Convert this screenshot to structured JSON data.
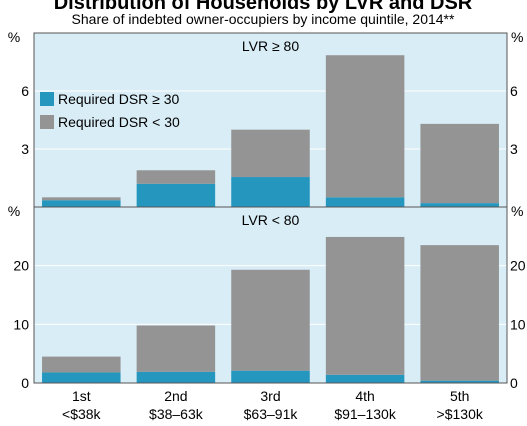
{
  "title": "Distribution of Households by LVR and DSR",
  "subtitle": "Share of indebted owner-occupiers by income quintile, 2014**",
  "chart_data": [
    {
      "type": "bar",
      "stacked": true,
      "panel_label": "LVR ≥ 80",
      "ylabel": "%",
      "ylim": [
        0,
        9
      ],
      "yticks": [
        3,
        6
      ],
      "grid": true,
      "legend": "upper left",
      "series": [
        {
          "name": "Required DSR ≥ 30",
          "color": "#2596be",
          "values": [
            0.35,
            1.2,
            1.55,
            0.5,
            0.2
          ]
        },
        {
          "name": "Required DSR < 30",
          "color": "#949494",
          "values": [
            0.15,
            0.7,
            2.45,
            7.35,
            4.1
          ]
        }
      ]
    },
    {
      "type": "bar",
      "stacked": true,
      "panel_label": "LVR < 80",
      "ylabel": "%",
      "ylim": [
        0,
        30
      ],
      "yticks": [
        0,
        10,
        20
      ],
      "grid": true,
      "categories": [
        "1st",
        "2nd",
        "3rd",
        "4th",
        "5th"
      ],
      "income_ranges": [
        "<$38k",
        "$38–63k",
        "$63–91k",
        "$91–130k",
        ">$130k"
      ],
      "series": [
        {
          "name": "Required DSR ≥ 30",
          "color": "#2596be",
          "values": [
            1.8,
            1.9,
            2.1,
            1.4,
            0.4
          ]
        },
        {
          "name": "Required DSR < 30",
          "color": "#949494",
          "values": [
            2.7,
            7.9,
            17.2,
            23.5,
            23.1
          ]
        }
      ]
    }
  ]
}
